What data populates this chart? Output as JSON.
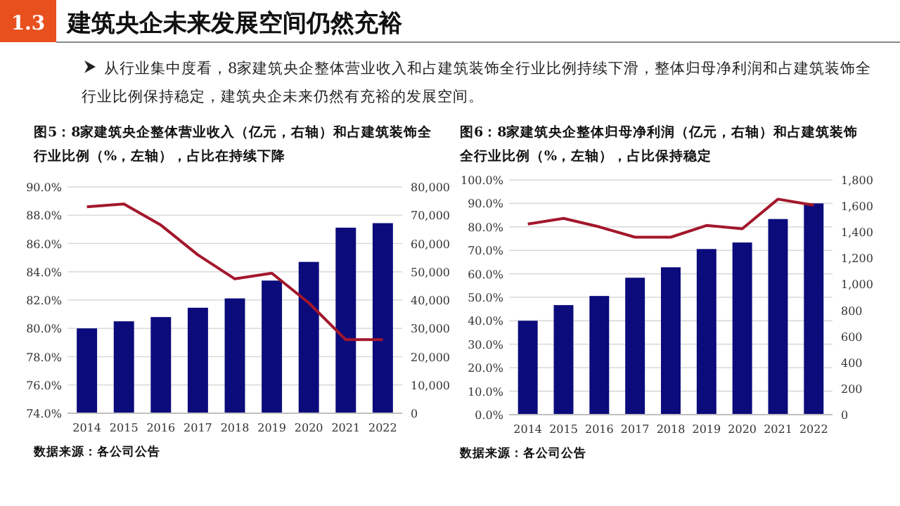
{
  "chart_data": [
    {
      "type": "other",
      "title": "建筑央企未来发展空间仍然充裕",
      "subtitle": "从行业集中度看，8家建筑央企整体营业收入和占建筑装饰全行业比例持续下滑，整体归母净利润和占建筑装饰全行业比例保持稳定，建筑央企未来仍然有充裕的发展空间。",
      "annotations": [
        "1.3"
      ]
    },
    {
      "type": "bar",
      "title": "图5：8家建筑央企整体营业收入（亿元，右轴）和占建筑装饰全行业比例（%，左轴），占比在持续下降",
      "categories": [
        "2014",
        "2015",
        "2016",
        "2017",
        "2018",
        "2019",
        "2020",
        "2021",
        "2022"
      ],
      "series": [
        {
          "type": "bar",
          "axis": "y2",
          "color": "#0b0b7c",
          "values": [
            30000,
            32500,
            34000,
            37300,
            40600,
            46900,
            53500,
            65600,
            67200
          ]
        },
        {
          "type": "line",
          "axis": "y",
          "color": "#a3172b",
          "values": [
            88.6,
            88.8,
            87.3,
            85.2,
            83.5,
            83.9,
            81.8,
            79.2,
            79.2
          ]
        }
      ],
      "ylim": [
        74,
        90
      ],
      "yticks": [
        {
          "value": 74,
          "label": "74.0%"
        },
        {
          "value": 76,
          "label": "76.0%"
        },
        {
          "value": 78,
          "label": "78.0%"
        },
        {
          "value": 80,
          "label": "80.0%"
        },
        {
          "value": 82,
          "label": "82.0%"
        },
        {
          "value": 84,
          "label": "84.0%"
        },
        {
          "value": 86,
          "label": "86.0%"
        },
        {
          "value": 88,
          "label": "88.0%"
        },
        {
          "value": 90,
          "label": "90.0%"
        }
      ],
      "y2lim": [
        0,
        80000
      ],
      "y2ticks": [
        0,
        {
          "value": 10000,
          "label": "10,000"
        },
        {
          "value": 20000,
          "label": "20,000"
        },
        {
          "value": 30000,
          "label": "30,000"
        },
        {
          "value": 40000,
          "label": "40,000"
        },
        {
          "value": 50000,
          "label": "50,000"
        },
        {
          "value": 60000,
          "label": "60,000"
        },
        {
          "value": 70000,
          "label": "70,000"
        },
        {
          "value": 80000,
          "label": "80,000"
        }
      ],
      "grid": "y",
      "marker": "none",
      "annotations": [
        "数据来源：各公司公告"
      ]
    },
    {
      "type": "bar",
      "title": "图6：8家建筑央企整体归母净利润（亿元，右轴）和占建筑装饰全行业比例（%，左轴），占比保持稳定",
      "categories": [
        "2014",
        "2015",
        "2016",
        "2017",
        "2018",
        "2019",
        "2020",
        "2021",
        "2022"
      ],
      "series": [
        {
          "type": "bar",
          "axis": "y2",
          "color": "#0b0b7c",
          "values": [
            720,
            840,
            910,
            1050,
            1130,
            1270,
            1320,
            1500,
            1620
          ]
        },
        {
          "type": "line",
          "axis": "y",
          "color": "#a3172b",
          "values": [
            81.2,
            83.6,
            80,
            75.6,
            75.6,
            80.6,
            79.2,
            91.8,
            89.2
          ]
        }
      ],
      "ylim": [
        0,
        100
      ],
      "yticks": [
        {
          "value": 0,
          "label": "0.0%"
        },
        {
          "value": 10,
          "label": "10.0%"
        },
        {
          "value": 20,
          "label": "20.0%"
        },
        {
          "value": 30,
          "label": "30.0%"
        },
        {
          "value": 40,
          "label": "40.0%"
        },
        {
          "value": 50,
          "label": "50.0%"
        },
        {
          "value": 60,
          "label": "60.0%"
        },
        {
          "value": 70,
          "label": "70.0%"
        },
        {
          "value": 80,
          "label": "80.0%"
        },
        {
          "value": 90,
          "label": "90.0%"
        },
        {
          "value": 100,
          "label": "100.0%"
        }
      ],
      "y2lim": [
        0,
        1800
      ],
      "y2ticks": [
        0,
        200,
        400,
        600,
        800,
        {
          "value": 1000,
          "label": "1,000"
        },
        {
          "value": 1200,
          "label": "1,200"
        },
        {
          "value": 1400,
          "label": "1,400"
        },
        {
          "value": 1600,
          "label": "1,600"
        },
        {
          "value": 1800,
          "label": "1,800"
        }
      ],
      "grid": "y",
      "marker": "none",
      "annotations": [
        "数据来源：各公司公告"
      ]
    }
  ]
}
